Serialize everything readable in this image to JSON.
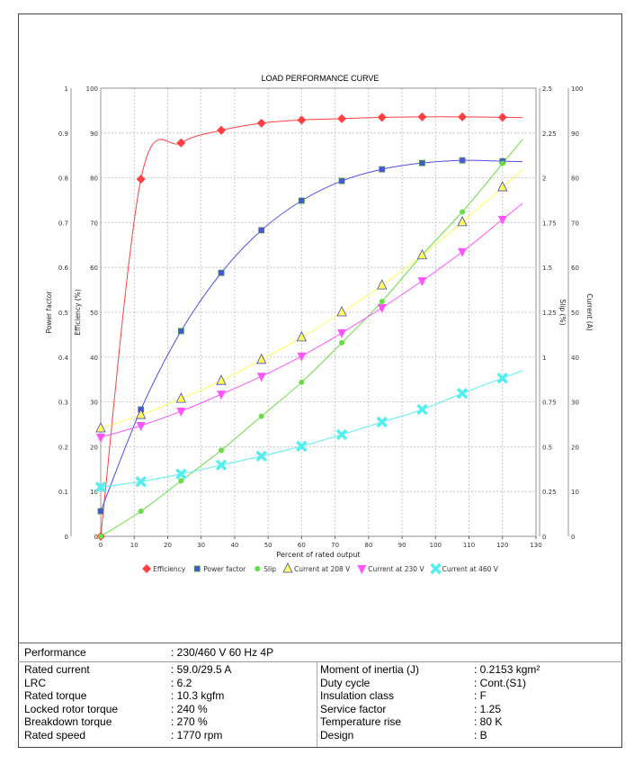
{
  "chart_data": {
    "type": "line",
    "title": "LOAD PERFORMANCE CURVE",
    "xlabel": "Percent of rated output",
    "xlim": [
      0,
      130
    ],
    "xticks": [
      0,
      10,
      20,
      30,
      40,
      50,
      60,
      70,
      80,
      90,
      100,
      110,
      120,
      130
    ],
    "grid": true,
    "legend_position": "bottom",
    "axes": {
      "power_factor": {
        "label": "Power factor",
        "side": "left-outer",
        "range": [
          0,
          1
        ],
        "ticks": [
          "0",
          "0.1",
          "0.2",
          "0.3",
          "0.4",
          "0.5",
          "0.6",
          "0.7",
          "0.8",
          "0.9",
          "1"
        ]
      },
      "efficiency": {
        "label": "Efficiency (%)",
        "side": "left-inner",
        "range": [
          0,
          100
        ],
        "ticks": [
          "0",
          "10",
          "20",
          "30",
          "40",
          "50",
          "60",
          "70",
          "80",
          "90",
          "100"
        ]
      },
      "slip": {
        "label": "Slip (%)",
        "side": "right-inner",
        "range": [
          0,
          2.5
        ],
        "ticks": [
          "0",
          "0.25",
          "0.5",
          "0.75",
          "1",
          "1.25",
          "1.5",
          "1.75",
          "2",
          "2.25",
          "2.5"
        ]
      },
      "current": {
        "label": "Current (A)",
        "side": "right-outer",
        "range": [
          0,
          100
        ],
        "ticks": [
          "0",
          "10",
          "20",
          "30",
          "40",
          "50",
          "60",
          "70",
          "80",
          "90",
          "100"
        ]
      }
    },
    "x": [
      0,
      12,
      24,
      36,
      48,
      60,
      72,
      84,
      96,
      108,
      120
    ],
    "series": [
      {
        "name": "Efficiency",
        "axis": "efficiency",
        "color": "#ff4040",
        "marker": "diamond",
        "values": [
          0,
          79.7,
          87.8,
          90.6,
          92.2,
          92.9,
          93.2,
          93.5,
          93.6,
          93.6,
          93.5
        ]
      },
      {
        "name": "Power factor",
        "axis": "power_factor",
        "color": "#4f4fe8",
        "marker": "square",
        "values": [
          0.056,
          0.283,
          0.458,
          0.588,
          0.683,
          0.749,
          0.793,
          0.819,
          0.833,
          0.839,
          0.837
        ]
      },
      {
        "name": "Slip",
        "axis": "slip",
        "color": "#66dd44",
        "marker": "circle",
        "values": [
          0,
          0.14,
          0.31,
          0.48,
          0.67,
          0.86,
          1.08,
          1.31,
          1.57,
          1.81,
          2.08
        ]
      },
      {
        "name": "Current at 208 V",
        "axis": "current",
        "color": "#ffff55",
        "marker": "triangle-up",
        "values": [
          24.1,
          27.1,
          30.7,
          34.7,
          39.4,
          44.4,
          50.0,
          56.0,
          62.7,
          70.1,
          77.9
        ]
      },
      {
        "name": "Current at 230 V",
        "axis": "current",
        "color": "#ff55ff",
        "marker": "triangle-down",
        "values": [
          22.1,
          24.7,
          27.9,
          31.7,
          35.7,
          40.2,
          45.4,
          51.0,
          57.0,
          63.5,
          70.7
        ]
      },
      {
        "name": "Current at 460 V",
        "axis": "current",
        "color": "#55eeee",
        "marker": "x",
        "values": [
          11.0,
          12.2,
          13.9,
          15.9,
          17.9,
          20.1,
          22.7,
          25.5,
          28.3,
          31.9,
          35.3
        ]
      }
    ]
  },
  "table": {
    "performance_label": "Performance",
    "performance_value": ": 230/460 V 60 Hz 4P",
    "left": [
      {
        "label": "Rated current",
        "value": ": 59.0/29.5 A"
      },
      {
        "label": "LRC",
        "value": ": 6.2"
      },
      {
        "label": "Rated torque",
        "value": ": 10.3 kgfm"
      },
      {
        "label": "Locked rotor torque",
        "value": ": 240 %"
      },
      {
        "label": "Breakdown torque",
        "value": ": 270 %"
      },
      {
        "label": "Rated speed",
        "value": ": 1770 rpm"
      }
    ],
    "right": [
      {
        "label": "Moment of inertia (J)",
        "value": ": 0.2153 kgm²"
      },
      {
        "label": "Duty cycle",
        "value": ": Cont.(S1)"
      },
      {
        "label": "Insulation class",
        "value": ": F"
      },
      {
        "label": "Service factor",
        "value": ": 1.25"
      },
      {
        "label": "Temperature rise",
        "value": ": 80 K"
      },
      {
        "label": "Design",
        "value": ": B"
      }
    ]
  }
}
